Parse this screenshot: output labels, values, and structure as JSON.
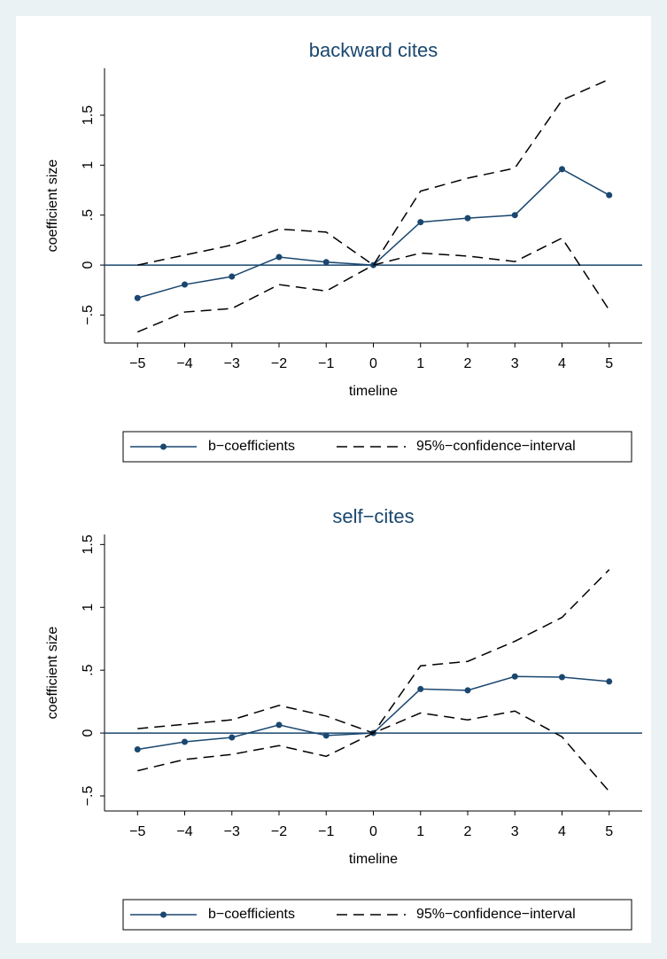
{
  "chart_data": [
    {
      "type": "line",
      "title": "backward cites",
      "x_label": "timeline",
      "y_label": "coefficient size",
      "x": [
        -5,
        -4,
        -3,
        -2,
        -1,
        0,
        1,
        2,
        3,
        4,
        5
      ],
      "series": [
        {
          "name": "b−coefficients",
          "color": "#1a476f",
          "markers": true,
          "values": [
            -0.33,
            -0.195,
            -0.115,
            0.08,
            0.03,
            0,
            0.43,
            0.47,
            0.5,
            0.96,
            0.7
          ]
        },
        {
          "name": "95%−confidence−interval",
          "color": "#000000",
          "dashed": true,
          "upper": [
            0,
            0.1,
            0.2,
            0.36,
            0.33,
            0,
            0.74,
            0.87,
            0.97,
            1.65,
            1.86
          ],
          "lower": [
            -0.67,
            -0.47,
            -0.435,
            -0.195,
            -0.26,
            0,
            0.12,
            0.09,
            0.035,
            0.27,
            -0.45
          ]
        }
      ],
      "xlim": [
        -5.7,
        5.7
      ],
      "ylim": [
        -0.78,
        1.97
      ],
      "hline": 0,
      "xticks": [
        {
          "value": -5,
          "label": "−5"
        },
        {
          "value": -4,
          "label": "−4"
        },
        {
          "value": -3,
          "label": "−3"
        },
        {
          "value": -2,
          "label": "−2"
        },
        {
          "value": -1,
          "label": "−1"
        },
        0,
        1,
        2,
        3,
        4,
        5
      ],
      "yticks": [
        {
          "value": -0.5,
          "label": "−.5"
        },
        0,
        {
          "value": 0.5,
          "label": ".5"
        },
        1,
        1.5
      ]
    },
    {
      "type": "line",
      "title": "self−cites",
      "x_label": "timeline",
      "y_label": "coefficient size",
      "x": [
        -5,
        -4,
        -3,
        -2,
        -1,
        0,
        1,
        2,
        3,
        4,
        5
      ],
      "series": [
        {
          "name": "b−coefficients",
          "color": "#1a476f",
          "markers": true,
          "values": [
            -0.13,
            -0.07,
            -0.035,
            0.065,
            -0.02,
            0,
            0.35,
            0.34,
            0.45,
            0.445,
            0.41
          ]
        },
        {
          "name": "95%−confidence−interval",
          "color": "#000000",
          "dashed": true,
          "upper": [
            0.035,
            0.07,
            0.105,
            0.22,
            0.135,
            0,
            0.535,
            0.57,
            0.73,
            0.92,
            1.3
          ],
          "lower": [
            -0.3,
            -0.21,
            -0.17,
            -0.1,
            -0.185,
            0,
            0.16,
            0.105,
            0.175,
            -0.03,
            -0.465
          ]
        }
      ],
      "xlim": [
        -5.7,
        5.7
      ],
      "ylim": [
        -0.62,
        1.58
      ],
      "hline": 0,
      "xticks": [
        {
          "value": -5,
          "label": "−5"
        },
        {
          "value": -4,
          "label": "−4"
        },
        {
          "value": -3,
          "label": "−3"
        },
        {
          "value": -2,
          "label": "−2"
        },
        {
          "value": -1,
          "label": "−1"
        },
        0,
        1,
        2,
        3,
        4,
        5
      ],
      "yticks": [
        {
          "value": -0.5,
          "label": "−.5"
        },
        0,
        {
          "value": 0.5,
          "label": ".5"
        },
        1,
        1.5
      ]
    }
  ]
}
